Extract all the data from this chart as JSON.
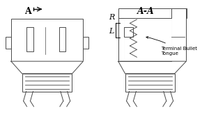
{
  "bg_color": "#ffffff",
  "line_color": "#4a4a4a",
  "lw": 0.7,
  "label_A": "A",
  "label_AA": "A-A",
  "label_R": "R",
  "label_L": "L",
  "label_terminal": "Terminal Bullet\nTongue"
}
